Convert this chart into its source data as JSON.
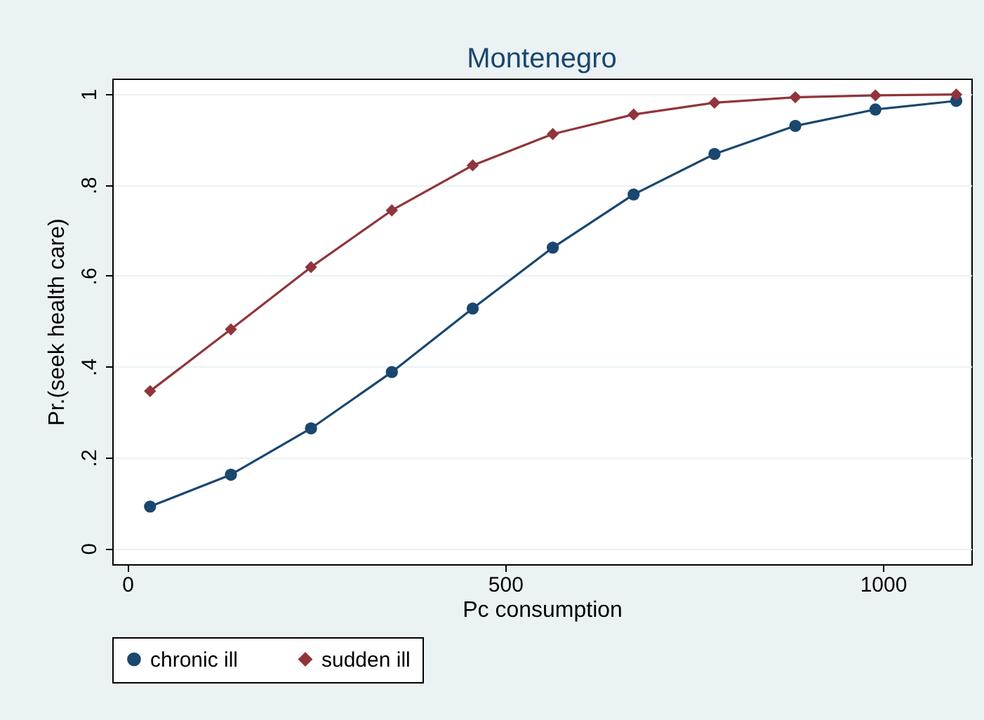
{
  "chart_data": {
    "type": "line",
    "title": "Montenegro",
    "xlabel": "Pc consumption",
    "ylabel": "Pr.(seek health care)",
    "x": [
      30,
      137,
      243,
      350,
      457,
      563,
      670,
      777,
      884,
      990,
      1097
    ],
    "series": [
      {
        "name": "chronic ill",
        "color": "#1a476f",
        "marker": "circle",
        "values": [
          0.092,
          0.162,
          0.264,
          0.388,
          0.528,
          0.662,
          0.779,
          0.868,
          0.93,
          0.966,
          0.985
        ]
      },
      {
        "name": "sudden ill",
        "color": "#90353b",
        "marker": "diamond",
        "values": [
          0.346,
          0.482,
          0.619,
          0.744,
          0.843,
          0.912,
          0.955,
          0.981,
          0.993,
          0.997,
          0.999
        ]
      }
    ],
    "xlim": [
      -20,
      1117
    ],
    "ylim": [
      -0.035,
      1.034
    ],
    "xticks": [
      0,
      500,
      1000
    ],
    "yticks": [
      0,
      {
        "value": 0.2,
        "label": ".2"
      },
      {
        "value": 0.4,
        "label": ".4"
      },
      {
        "value": 0.6,
        "label": ".6"
      },
      {
        "value": 0.8,
        "label": ".8"
      },
      1
    ],
    "grid": "y",
    "legend": "bottom",
    "line_style": "solid"
  }
}
